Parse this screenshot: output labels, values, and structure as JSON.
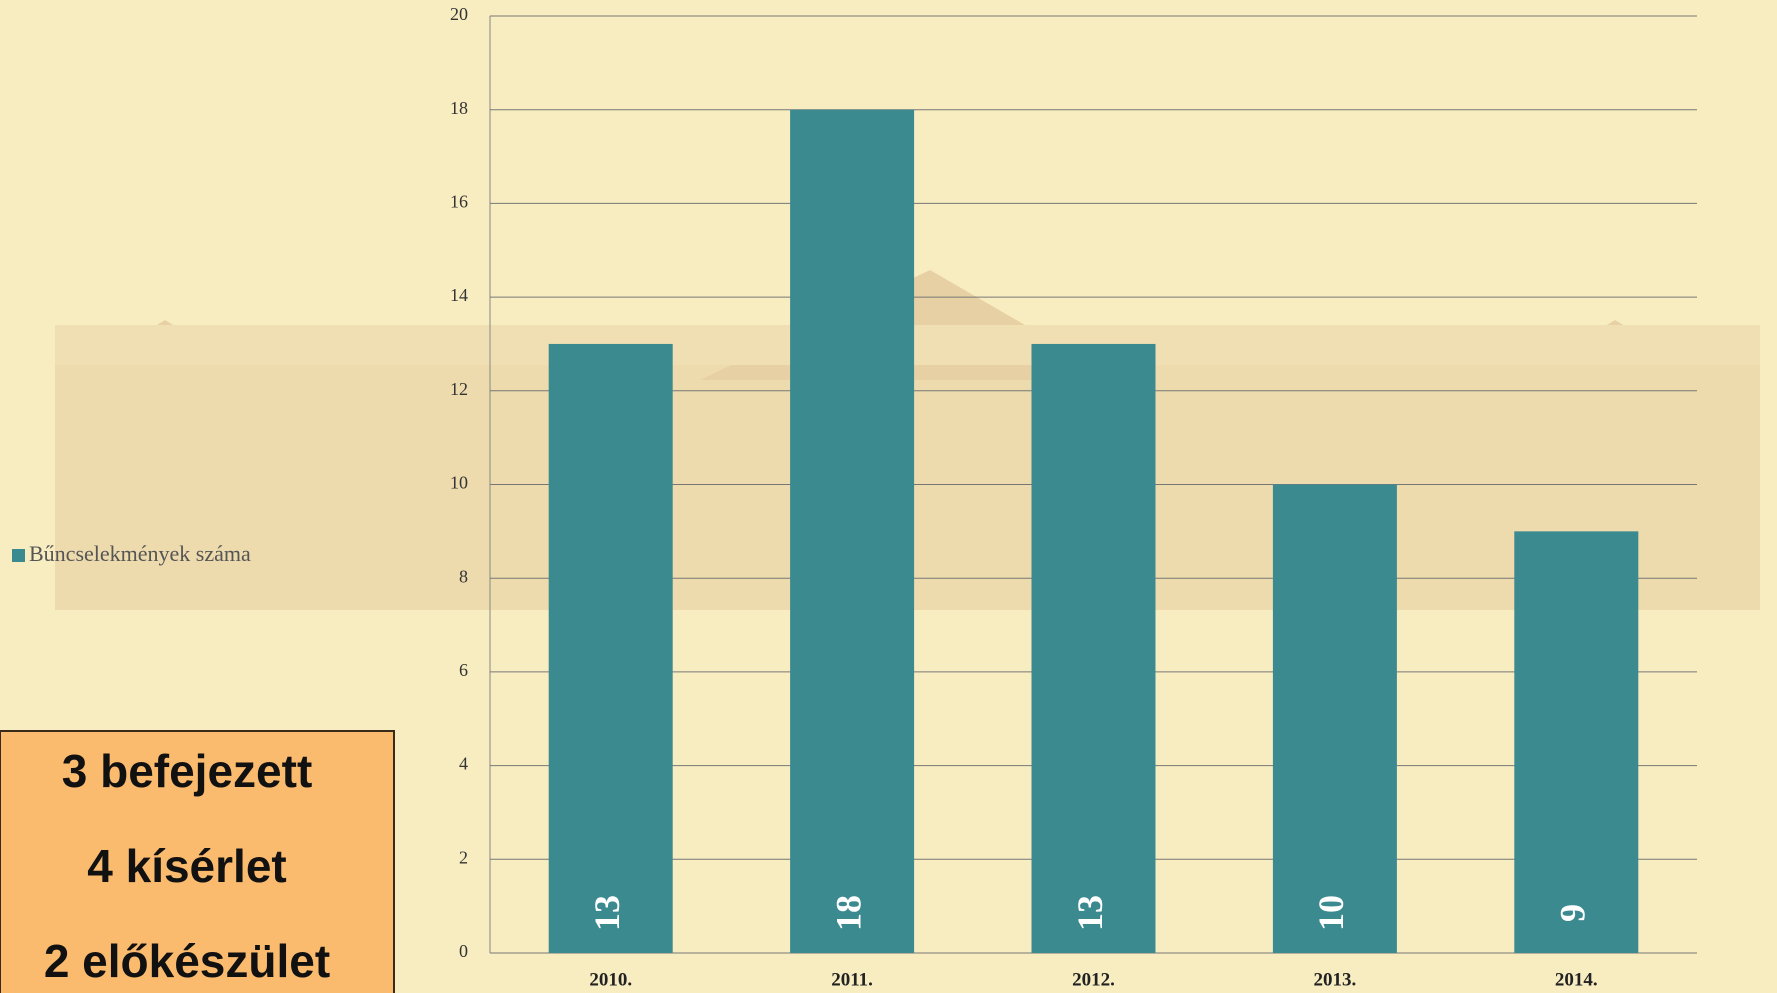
{
  "chart_data": {
    "type": "bar",
    "categories": [
      "2010.",
      "2011.",
      "2012.",
      "2013.",
      "2014."
    ],
    "series": [
      {
        "name": "Bűncselekmények száma",
        "color": "#3b8a90",
        "values": [
          13,
          18,
          13,
          10,
          9
        ]
      }
    ],
    "ylim": [
      0,
      20
    ],
    "yticks": [
      0,
      2,
      4,
      6,
      8,
      10,
      12,
      14,
      16,
      18,
      20
    ],
    "grid": true,
    "legend": "left",
    "annotations": [
      "3 befejezett",
      "4 kísérlet",
      "2 előkészület"
    ]
  }
}
